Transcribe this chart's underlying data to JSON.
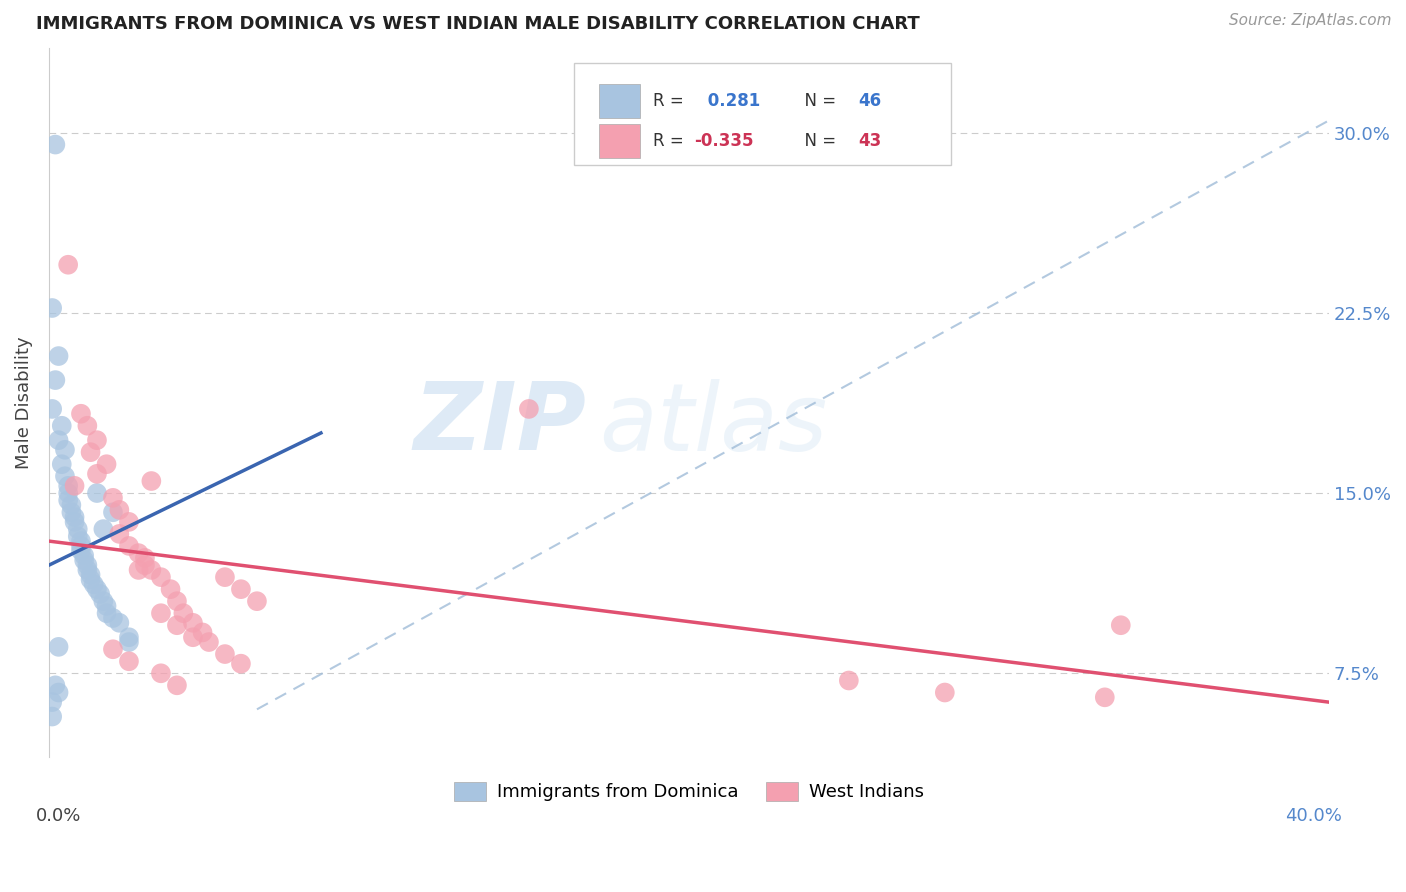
{
  "title": "IMMIGRANTS FROM DOMINICA VS WEST INDIAN MALE DISABILITY CORRELATION CHART",
  "source": "Source: ZipAtlas.com",
  "ylabel": "Male Disability",
  "ytick_labels": [
    "7.5%",
    "15.0%",
    "22.5%",
    "30.0%"
  ],
  "ytick_values": [
    0.075,
    0.15,
    0.225,
    0.3
  ],
  "xlim": [
    0.0,
    0.4
  ],
  "ylim": [
    0.04,
    0.335
  ],
  "legend_label1": "Immigrants from Dominica",
  "legend_label2": "West Indians",
  "r1": "0.281",
  "n1": "46",
  "r2": "-0.335",
  "n2": "43",
  "watermark_zip": "ZIP",
  "watermark_atlas": "atlas",
  "blue_color": "#a8c4e0",
  "pink_color": "#f4a0b0",
  "blue_line_color": "#3a65b0",
  "pink_line_color": "#e05070",
  "dashed_line_color": "#a0bcd8",
  "scatter_blue": [
    [
      0.002,
      0.295
    ],
    [
      0.001,
      0.227
    ],
    [
      0.003,
      0.207
    ],
    [
      0.002,
      0.197
    ],
    [
      0.001,
      0.185
    ],
    [
      0.004,
      0.178
    ],
    [
      0.003,
      0.172
    ],
    [
      0.005,
      0.168
    ],
    [
      0.004,
      0.162
    ],
    [
      0.005,
      0.157
    ],
    [
      0.006,
      0.153
    ],
    [
      0.006,
      0.15
    ],
    [
      0.006,
      0.147
    ],
    [
      0.007,
      0.145
    ],
    [
      0.007,
      0.142
    ],
    [
      0.008,
      0.14
    ],
    [
      0.008,
      0.138
    ],
    [
      0.009,
      0.135
    ],
    [
      0.009,
      0.132
    ],
    [
      0.01,
      0.13
    ],
    [
      0.01,
      0.128
    ],
    [
      0.01,
      0.126
    ],
    [
      0.011,
      0.124
    ],
    [
      0.011,
      0.122
    ],
    [
      0.012,
      0.12
    ],
    [
      0.012,
      0.118
    ],
    [
      0.013,
      0.116
    ],
    [
      0.013,
      0.114
    ],
    [
      0.014,
      0.112
    ],
    [
      0.015,
      0.15
    ],
    [
      0.015,
      0.11
    ],
    [
      0.016,
      0.108
    ],
    [
      0.017,
      0.135
    ],
    [
      0.017,
      0.105
    ],
    [
      0.018,
      0.103
    ],
    [
      0.018,
      0.1
    ],
    [
      0.02,
      0.098
    ],
    [
      0.02,
      0.142
    ],
    [
      0.022,
      0.096
    ],
    [
      0.025,
      0.09
    ],
    [
      0.025,
      0.088
    ],
    [
      0.003,
      0.086
    ],
    [
      0.002,
      0.07
    ],
    [
      0.003,
      0.067
    ],
    [
      0.001,
      0.063
    ],
    [
      0.001,
      0.057
    ]
  ],
  "scatter_pink": [
    [
      0.006,
      0.245
    ],
    [
      0.01,
      0.183
    ],
    [
      0.012,
      0.178
    ],
    [
      0.015,
      0.172
    ],
    [
      0.013,
      0.167
    ],
    [
      0.018,
      0.162
    ],
    [
      0.015,
      0.158
    ],
    [
      0.008,
      0.153
    ],
    [
      0.02,
      0.148
    ],
    [
      0.022,
      0.143
    ],
    [
      0.025,
      0.138
    ],
    [
      0.022,
      0.133
    ],
    [
      0.025,
      0.128
    ],
    [
      0.03,
      0.123
    ],
    [
      0.028,
      0.118
    ],
    [
      0.032,
      0.155
    ],
    [
      0.035,
      0.115
    ],
    [
      0.038,
      0.11
    ],
    [
      0.04,
      0.105
    ],
    [
      0.042,
      0.1
    ],
    [
      0.045,
      0.096
    ],
    [
      0.048,
      0.092
    ],
    [
      0.05,
      0.088
    ],
    [
      0.055,
      0.083
    ],
    [
      0.06,
      0.079
    ],
    [
      0.055,
      0.115
    ],
    [
      0.06,
      0.11
    ],
    [
      0.065,
      0.105
    ],
    [
      0.035,
      0.1
    ],
    [
      0.04,
      0.095
    ],
    [
      0.045,
      0.09
    ],
    [
      0.02,
      0.085
    ],
    [
      0.025,
      0.08
    ],
    [
      0.03,
      0.12
    ],
    [
      0.035,
      0.075
    ],
    [
      0.04,
      0.07
    ],
    [
      0.028,
      0.125
    ],
    [
      0.032,
      0.118
    ],
    [
      0.25,
      0.072
    ],
    [
      0.28,
      0.067
    ],
    [
      0.335,
      0.095
    ],
    [
      0.33,
      0.065
    ],
    [
      0.15,
      0.185
    ]
  ],
  "blue_trendline_x": [
    0.0,
    0.085
  ],
  "blue_trendline_y": [
    0.12,
    0.175
  ],
  "pink_trendline_x": [
    0.0,
    0.4
  ],
  "pink_trendline_y": [
    0.13,
    0.063
  ],
  "dashed_trendline_x": [
    0.065,
    0.4
  ],
  "dashed_trendline_y": [
    0.06,
    0.305
  ]
}
